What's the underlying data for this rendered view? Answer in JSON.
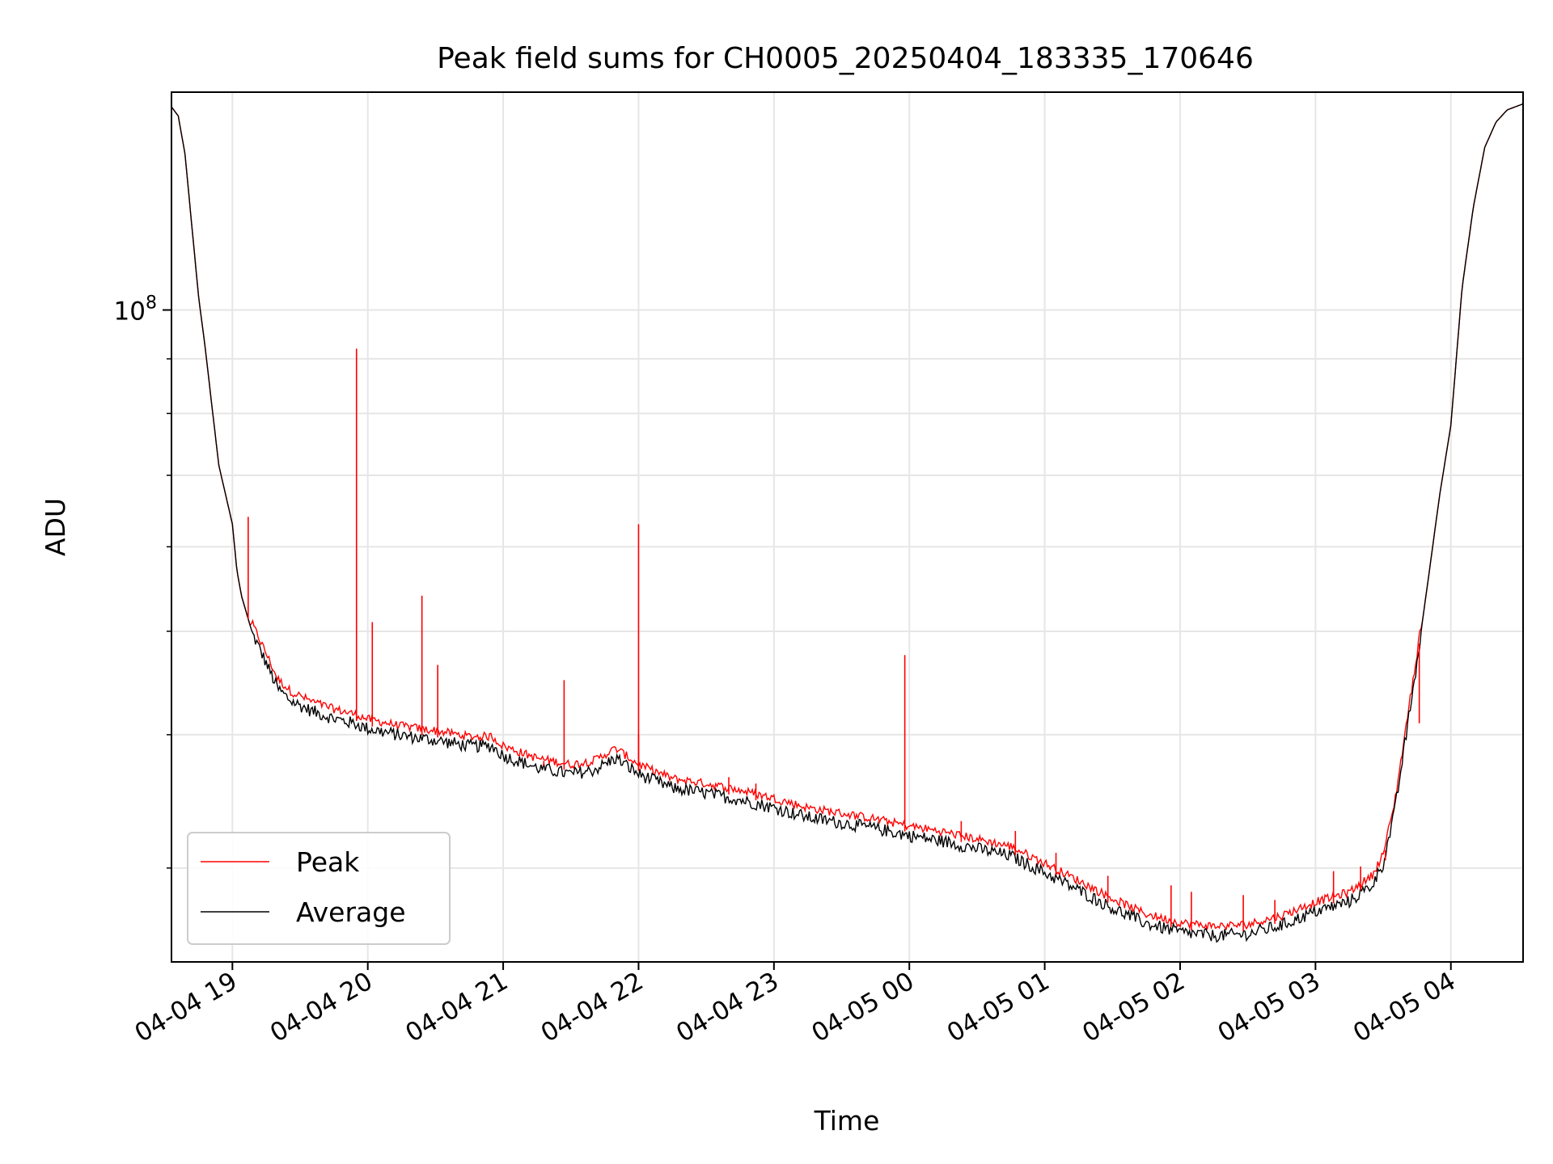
{
  "chart_data": {
    "type": "line",
    "title": "Peak field sums for CH0005_20250404_183335_170646",
    "xlabel": "Time",
    "ylabel": "ADU",
    "yscale": "log",
    "grid": true,
    "legend": {
      "placement": "lower-left",
      "entries": [
        "Peak",
        "Average"
      ]
    },
    "x_ticks": [
      "04-04 19",
      "04-04 20",
      "04-04 21",
      "04-04 22",
      "04-04 23",
      "04-05 00",
      "04-05 01",
      "04-05 02",
      "04-05 03",
      "04-05 04"
    ],
    "xlim": [
      "2025-04-04 18:33",
      "2025-04-05 04:32"
    ],
    "ylim": [
      24500000,
      160000000
    ],
    "y_ticks": [
      {
        "label": "10",
        "exp": "8",
        "value": 100000000
      }
    ],
    "y_minor_ticks": [
      30000000,
      40000000,
      50000000,
      60000000,
      70000000,
      80000000,
      90000000,
      200000000
    ],
    "series": [
      {
        "name": "Average",
        "color": "#000000",
        "points": [
          [
            "2025-04-04 18:33",
            155000000
          ],
          [
            "2025-04-04 18:36",
            152000000
          ],
          [
            "2025-04-04 18:39",
            140000000
          ],
          [
            "2025-04-04 18:42",
            120000000
          ],
          [
            "2025-04-04 18:45",
            103000000
          ],
          [
            "2025-04-04 18:48",
            92000000
          ],
          [
            "2025-04-04 18:51",
            81000000
          ],
          [
            "2025-04-04 18:54",
            71500000
          ],
          [
            "2025-04-04 19:00",
            63000000
          ],
          [
            "2025-04-04 19:02",
            57000000
          ],
          [
            "2025-04-04 19:04",
            54000000
          ],
          [
            "2025-04-04 19:08",
            50500000
          ],
          [
            "2025-04-04 19:12",
            48500000
          ],
          [
            "2025-04-04 19:16",
            46500000
          ],
          [
            "2025-04-04 19:20",
            44500000
          ],
          [
            "2025-04-04 19:26",
            43300000
          ],
          [
            "2025-04-04 19:35",
            42400000
          ],
          [
            "2025-04-04 19:45",
            41700000
          ],
          [
            "2025-04-04 19:55",
            41200000
          ],
          [
            "2025-04-04 20:00",
            40800000
          ],
          [
            "2025-04-04 20:15",
            40200000
          ],
          [
            "2025-04-04 20:30",
            39800000
          ],
          [
            "2025-04-04 20:45",
            39300000
          ],
          [
            "2025-04-04 20:55",
            39300000
          ],
          [
            "2025-04-04 21:00",
            38500000
          ],
          [
            "2025-04-04 21:15",
            37500000
          ],
          [
            "2025-04-04 21:30",
            37000000
          ],
          [
            "2025-04-04 21:40",
            37300000
          ],
          [
            "2025-04-04 21:50",
            38300000
          ],
          [
            "2025-04-04 22:00",
            37000000
          ],
          [
            "2025-04-04 22:15",
            35900000
          ],
          [
            "2025-04-04 22:30",
            35500000
          ],
          [
            "2025-04-04 22:45",
            35000000
          ],
          [
            "2025-04-04 23:00",
            34400000
          ],
          [
            "2025-04-04 23:15",
            33700000
          ],
          [
            "2025-04-04 23:30",
            33300000
          ],
          [
            "2025-04-04 23:45",
            32900000
          ],
          [
            "2025-04-05 00:00",
            32400000
          ],
          [
            "2025-04-05 00:15",
            32000000
          ],
          [
            "2025-04-05 00:30",
            31500000
          ],
          [
            "2025-04-05 00:45",
            31000000
          ],
          [
            "2025-04-05 01:00",
            29900000
          ],
          [
            "2025-04-05 01:15",
            28800000
          ],
          [
            "2025-04-05 01:30",
            27700000
          ],
          [
            "2025-04-05 01:45",
            26800000
          ],
          [
            "2025-04-05 02:00",
            26300000
          ],
          [
            "2025-04-05 02:15",
            26100000
          ],
          [
            "2025-04-05 02:30",
            26200000
          ],
          [
            "2025-04-05 02:45",
            26700000
          ],
          [
            "2025-04-05 03:00",
            27500000
          ],
          [
            "2025-04-05 03:15",
            28100000
          ],
          [
            "2025-04-05 03:25",
            29100000
          ],
          [
            "2025-04-05 03:30",
            30500000
          ],
          [
            "2025-04-05 03:35",
            34000000
          ],
          [
            "2025-04-05 03:40",
            40000000
          ],
          [
            "2025-04-05 03:45",
            47000000
          ],
          [
            "2025-04-05 03:50",
            56000000
          ],
          [
            "2025-04-05 03:55",
            67000000
          ],
          [
            "2025-04-05 04:00",
            78000000
          ],
          [
            "2025-04-05 04:05",
            105000000
          ],
          [
            "2025-04-05 04:10",
            125000000
          ],
          [
            "2025-04-05 04:15",
            142000000
          ],
          [
            "2025-04-05 04:20",
            150000000
          ],
          [
            "2025-04-05 04:25",
            154000000
          ],
          [
            "2025-04-05 04:32",
            156000000
          ]
        ]
      },
      {
        "name": "Peak",
        "color": "#ff0000",
        "spikes": [
          [
            "2025-04-04 19:07",
            64000000
          ],
          [
            "2025-04-04 19:55",
            92000000
          ],
          [
            "2025-04-04 20:02",
            51000000
          ],
          [
            "2025-04-04 20:24",
            54000000
          ],
          [
            "2025-04-04 20:31",
            46500000
          ],
          [
            "2025-04-04 21:27",
            45000000
          ],
          [
            "2025-04-04 22:00",
            63000000
          ],
          [
            "2025-04-04 22:00",
            40000000
          ],
          [
            "2025-04-04 23:58",
            47500000
          ],
          [
            "2025-04-04 21:07",
            38000000
          ],
          [
            "2025-04-04 21:18",
            37800000
          ],
          [
            "2025-04-04 22:40",
            36500000
          ],
          [
            "2025-04-04 22:52",
            36000000
          ],
          [
            "2025-04-05 00:23",
            33200000
          ],
          [
            "2025-04-05 00:47",
            32500000
          ],
          [
            "2025-04-05 01:05",
            31000000
          ],
          [
            "2025-04-05 01:28",
            29500000
          ],
          [
            "2025-04-05 01:56",
            28900000
          ],
          [
            "2025-04-05 02:05",
            28500000
          ],
          [
            "2025-04-05 02:28",
            28300000
          ],
          [
            "2025-04-05 02:42",
            28000000
          ],
          [
            "2025-04-05 03:08",
            29800000
          ],
          [
            "2025-04-05 03:20",
            30100000
          ],
          [
            "2025-04-05 03:31",
            30500000
          ],
          [
            "2025-04-05 03:46",
            41000000
          ]
        ]
      }
    ]
  }
}
